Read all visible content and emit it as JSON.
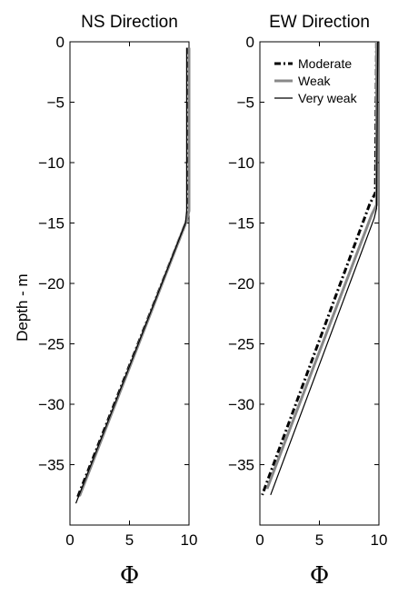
{
  "chart_data": [
    {
      "type": "line",
      "title": "NS Direction",
      "xlabel": "Φ",
      "ylabel": "Depth - m",
      "xlim": [
        0,
        10
      ],
      "ylim": [
        -40,
        0
      ],
      "xticks": [
        0,
        5,
        10
      ],
      "yticks": [
        0,
        -5,
        -10,
        -15,
        -20,
        -25,
        -30,
        -35
      ],
      "ytick_labels": [
        "0",
        "−5",
        "−10",
        "−15",
        "−20",
        "−25",
        "−30",
        "−35"
      ],
      "legend": false,
      "series": [
        {
          "style": "dashdot",
          "color": "#000000",
          "x": [
            9.9,
            9.9,
            9.8,
            0.6
          ],
          "y": [
            -0.5,
            -14.0,
            -14.8,
            -37.8
          ]
        },
        {
          "style": "solid-thick",
          "color": "#888888",
          "x": [
            10.0,
            10.0,
            9.8,
            0.8
          ],
          "y": [
            -0.5,
            -14.0,
            -14.8,
            -37.6
          ]
        },
        {
          "style": "solid",
          "color": "#000000",
          "x": [
            9.8,
            9.8,
            9.7,
            0.5
          ],
          "y": [
            -0.5,
            -14.0,
            -15.0,
            -38.2
          ]
        }
      ]
    },
    {
      "type": "line",
      "title": "EW Direction",
      "xlabel": "Φ",
      "xlim": [
        0,
        10
      ],
      "ylim": [
        -40,
        0
      ],
      "xticks": [
        0,
        5,
        10
      ],
      "yticks": [
        0,
        -5,
        -10,
        -15,
        -20,
        -25,
        -30,
        -35
      ],
      "ytick_labels": [
        "0",
        "−5",
        "−10",
        "−15",
        "−20",
        "−25",
        "−30",
        "−35"
      ],
      "legend": true,
      "legend_position": "top-right",
      "series": [
        {
          "name": "Moderate",
          "style": "dashdot",
          "color": "#000000",
          "x": [
            9.8,
            9.7,
            9.2,
            0.2
          ],
          "y": [
            0,
            -12.5,
            -13.5,
            -37.5
          ]
        },
        {
          "name": "Weak",
          "style": "solid-thick",
          "color": "#888888",
          "x": [
            9.8,
            9.8,
            9.4,
            0.6
          ],
          "y": [
            0,
            -13.5,
            -14.3,
            -37.0
          ]
        },
        {
          "name": "Very weak",
          "style": "solid",
          "color": "#000000",
          "x": [
            9.9,
            9.8,
            9.6,
            0.9
          ],
          "y": [
            0,
            -13.8,
            -14.6,
            -37.5
          ]
        }
      ]
    }
  ]
}
